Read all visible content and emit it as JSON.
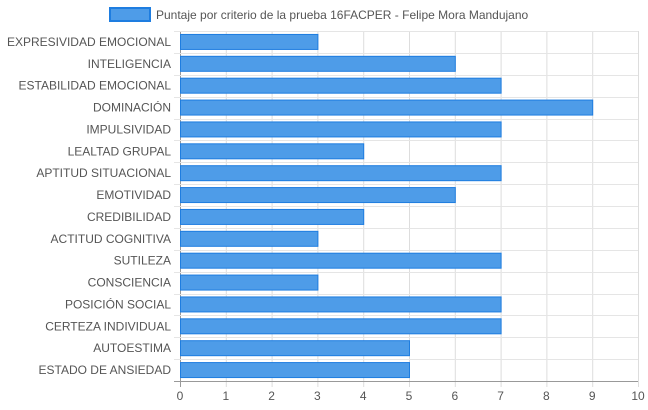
{
  "chart_data": {
    "type": "bar",
    "orientation": "horizontal",
    "categories": [
      "EXPRESIVIDAD EMOCIONAL",
      "INTELIGENCIA",
      "ESTABILIDAD EMOCIONAL",
      "DOMINACIÓN",
      "IMPULSIVIDAD",
      "LEALTAD GRUPAL",
      "APTITUD SITUACIONAL",
      "EMOTIVIDAD",
      "CREDIBILIDAD",
      "ACTITUD COGNITIVA",
      "SUTILEZA",
      "CONSCIENCIA",
      "POSICIÓN SOCIAL",
      "CERTEZA INDIVIDUAL",
      "AUTOESTIMA",
      "ESTADO DE ANSIEDAD"
    ],
    "series": [
      {
        "name": "Puntaje por criterio de la prueba 16FACPER - Felipe Mora Mandujano",
        "values": [
          3,
          6,
          7,
          9,
          7,
          4,
          7,
          6,
          4,
          3,
          7,
          3,
          7,
          7,
          5,
          5
        ],
        "color": "#4e9ce8",
        "border_color": "#1e7de0"
      }
    ],
    "xlim": [
      0,
      10
    ],
    "x_ticks": [
      "0",
      "1",
      "2",
      "3",
      "4",
      "5",
      "6",
      "7",
      "8",
      "9",
      "10"
    ],
    "grid": true,
    "legend_position": "top"
  }
}
